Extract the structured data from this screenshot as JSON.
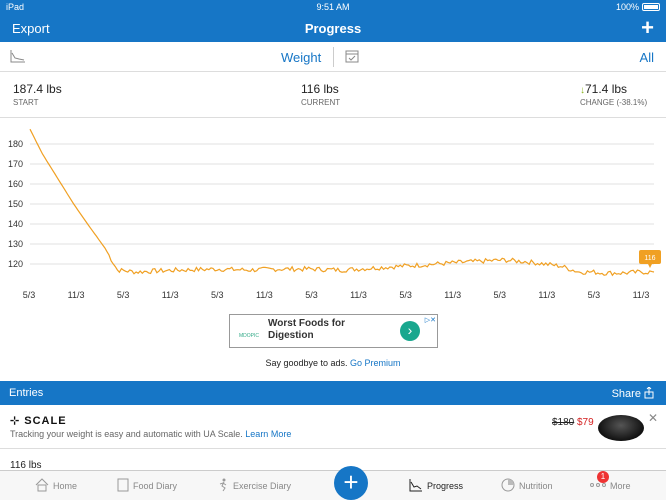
{
  "status_bar": {
    "device": "iPad",
    "time": "9:51 AM",
    "battery": "100%"
  },
  "topbar": {
    "left": "Export",
    "title": "Progress",
    "right": "+"
  },
  "filter": {
    "metric": "Weight",
    "range": "All"
  },
  "stats": {
    "start": {
      "value": "187.4 lbs",
      "label": "START"
    },
    "current": {
      "value": "116 lbs",
      "label": "CURRENT"
    },
    "change": {
      "value": "71.4 lbs",
      "label": "CHANGE (-38.1%)"
    }
  },
  "chart_data": {
    "type": "line",
    "series_color": "#f0a023",
    "yticks": [
      120,
      130,
      140,
      150,
      160,
      170,
      180
    ],
    "ylim": [
      113,
      188
    ],
    "xticks": [
      "5/3",
      "11/3",
      "5/3",
      "11/3",
      "5/3",
      "11/3",
      "5/3",
      "11/3",
      "5/3",
      "11/3",
      "5/3",
      "11/3",
      "5/3",
      "11/3"
    ],
    "x": [
      0,
      2,
      5,
      7,
      9,
      12,
      14,
      17,
      20,
      24,
      30,
      35,
      40,
      45,
      50,
      55,
      60,
      65,
      70,
      76,
      80,
      85,
      88,
      90,
      92,
      95,
      98,
      100
    ],
    "y": [
      187.4,
      175,
      160,
      150,
      141,
      128,
      117,
      116,
      116.5,
      117,
      117.5,
      117,
      117.5,
      117.5,
      117,
      118,
      119,
      120,
      121,
      122,
      121,
      119,
      116,
      116,
      115.5,
      115.5,
      116,
      116
    ],
    "last_label": "116"
  },
  "ad": {
    "headline": "Worst Foods for Digestion",
    "brand": "MDOPIC",
    "go": "›",
    "adchoice": "▷✕"
  },
  "ad_free": {
    "text": "Say goodbye to ads.",
    "link": "Go Premium"
  },
  "entries": {
    "label": "Entries",
    "share": "Share"
  },
  "promo": {
    "brand": "SCALE",
    "tagline": "Tracking your weight is easy and automatic with UA Scale.",
    "link": "Learn More",
    "old_price": "$180",
    "new_price": "$79",
    "close": "✕"
  },
  "entry_row": {
    "value": "116 lbs"
  },
  "tabs": [
    {
      "label": "Home",
      "icon": "home-icon"
    },
    {
      "label": "Food Diary",
      "icon": "food-diary-icon"
    },
    {
      "label": "Exercise Diary",
      "icon": "exercise-icon"
    },
    {
      "label": "Progress",
      "icon": "progress-icon"
    },
    {
      "label": "Nutrition",
      "icon": "nutrition-icon"
    },
    {
      "label": "More",
      "icon": "more-icon"
    }
  ],
  "more_badge": "1",
  "colors": {
    "brand": "#1676c6",
    "accent": "#f0a023",
    "down": "#8ab31e"
  }
}
